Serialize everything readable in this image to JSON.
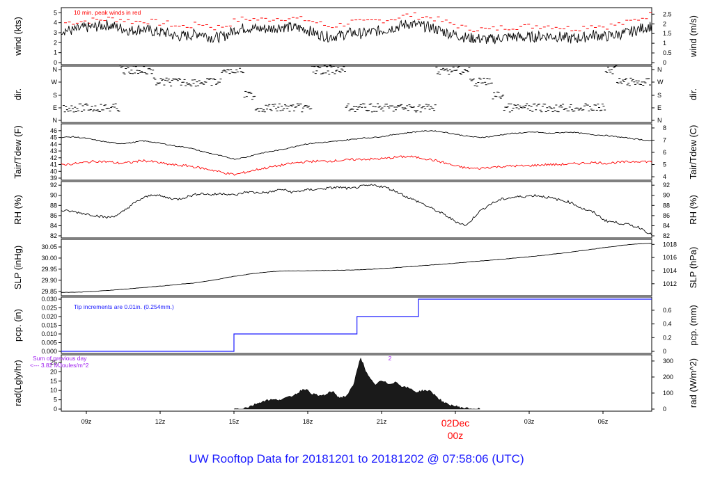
{
  "footer": {
    "title": "UW Rooftop Data for 20181201  to  20181202 @ 07:58:06  (UTC)"
  },
  "colors": {
    "series": "#000000",
    "peak": "#ff0000",
    "dew": "#ff0000",
    "precip": "#1a1aff",
    "footer": "#1a1aff",
    "annotation_purple": "#a020f0",
    "date_label": "#ff0000"
  },
  "chart_data": [
    {
      "type": "line",
      "panel": "wind",
      "ylabel": "wind (kts)",
      "ylabel_right": "wind (m/s)",
      "ylim": [
        0,
        5.3
      ],
      "yticks": [
        0,
        1,
        2,
        3,
        4,
        5
      ],
      "yticks_right": [
        "0",
        "0.5",
        "1",
        "1.5",
        "2",
        "2.5"
      ],
      "annotation": "10 min. peak winds in red",
      "series": [
        {
          "values": [
            3.3,
            3.2,
            3.5,
            3.6,
            3.8,
            3.5,
            3.2,
            3.4,
            3.1,
            3.0,
            2.6,
            2.7,
            3.0,
            2.5,
            2.6,
            3.3,
            3.5,
            3.4,
            3.4,
            3.6,
            3.5,
            3.4,
            2.9,
            2.6,
            2.7,
            3.0,
            2.9,
            3.1,
            3.3,
            3.6,
            3.9,
            3.7,
            3.5,
            3.1,
            2.8,
            2.5,
            2.4,
            2.3,
            2.5,
            2.6,
            2.5,
            2.6,
            2.7,
            2.6,
            2.4,
            2.5,
            2.8,
            2.6,
            2.8,
            3.0,
            3.4,
            3.7
          ]
        },
        {
          "name": "10 min. peak winds",
          "values": [
            4.0,
            4.1,
            4.2,
            4.3,
            4.4,
            4.3,
            4.1,
            4.2,
            4.0,
            3.9,
            3.6,
            3.7,
            3.9,
            3.5,
            3.7,
            4.3,
            4.4,
            4.3,
            4.4,
            4.5,
            4.4,
            4.3,
            4.0,
            3.6,
            3.8,
            4.1,
            4.0,
            4.2,
            4.3,
            4.5,
            4.8,
            4.6,
            4.5,
            4.1,
            3.8,
            3.4,
            3.4,
            3.3,
            3.5,
            3.6,
            3.6,
            3.7,
            3.7,
            3.6,
            3.4,
            3.5,
            3.8,
            3.6,
            3.8,
            4.0,
            4.4,
            4.8
          ]
        }
      ]
    },
    {
      "type": "scatter",
      "panel": "dir",
      "ylabel": "dir.",
      "ylabel_right": "dir.",
      "yticks": [
        "N",
        "W",
        "S",
        "E",
        "N"
      ],
      "values": [
        "E",
        "E",
        "E",
        "E",
        "E",
        "N",
        "N",
        "N",
        "W",
        "W",
        "W",
        "W",
        "W",
        "W",
        "N",
        "N",
        "S",
        "E",
        "E",
        "E",
        "E",
        "E",
        "N",
        "N",
        "N",
        "E",
        "E",
        "E",
        "E",
        "E",
        "E",
        "E",
        "E",
        "N",
        "N",
        "N",
        "W",
        "W",
        "S",
        "E",
        "E",
        "E",
        "E",
        "E",
        "E",
        "E",
        "E",
        "E",
        "N",
        "W",
        "W",
        "W"
      ]
    },
    {
      "type": "line",
      "panel": "temperature",
      "ylabel": "Tair/Tdew (F)",
      "ylabel_right": "Tair/Tdew (C)",
      "ylim": [
        39,
        46.7
      ],
      "yticks": [
        39,
        40,
        41,
        42,
        43,
        44,
        45,
        46
      ],
      "yticks_right": [
        "4",
        "5",
        "6",
        "7",
        "8"
      ],
      "series": [
        {
          "name": "Tair",
          "values": [
            45.0,
            45.1,
            44.9,
            44.6,
            44.3,
            44.1,
            44.2,
            44.5,
            44.3,
            44.0,
            43.7,
            43.5,
            43.0,
            42.6,
            42.2,
            41.8,
            42.1,
            42.6,
            42.9,
            43.2,
            43.6,
            44.0,
            44.2,
            44.3,
            44.5,
            44.7,
            44.9,
            45.0,
            45.2,
            45.5,
            45.7,
            45.9,
            46.0,
            45.8,
            45.5,
            45.2,
            45.0,
            45.1,
            45.4,
            45.6,
            45.7,
            45.8,
            45.6,
            45.7,
            45.8,
            45.6,
            45.4,
            45.3,
            45.1,
            44.9,
            44.7,
            44.5
          ]
        },
        {
          "name": "Tdew",
          "values": [
            41.0,
            41.1,
            41.3,
            41.5,
            41.4,
            41.2,
            41.3,
            41.6,
            41.4,
            41.1,
            40.9,
            40.8,
            40.5,
            40.2,
            39.8,
            39.5,
            39.9,
            40.3,
            40.6,
            40.9,
            41.2,
            41.4,
            41.5,
            41.5,
            41.6,
            41.7,
            41.8,
            41.8,
            41.9,
            42.1,
            42.2,
            42.0,
            41.7,
            41.3,
            40.8,
            40.5,
            40.4,
            40.6,
            40.7,
            40.8,
            40.8,
            40.9,
            41.0,
            41.0,
            41.1,
            41.2,
            41.3,
            41.2,
            41.3,
            41.4,
            41.5,
            41.4
          ]
        }
      ]
    },
    {
      "type": "line",
      "panel": "rh",
      "ylabel": "RH (%)",
      "ylabel_right": "RH (%)",
      "ylim": [
        82,
        92.3
      ],
      "yticks": [
        82,
        84,
        86,
        88,
        90,
        92
      ],
      "values": [
        87.0,
        86.8,
        86.4,
        86.0,
        85.6,
        86.2,
        88.0,
        89.4,
        90.2,
        89.6,
        89.2,
        89.8,
        90.4,
        90.1,
        90.4,
        90.0,
        90.7,
        90.5,
        90.6,
        91.2,
        90.6,
        91.0,
        91.2,
        91.4,
        91.6,
        91.3,
        91.8,
        92.0,
        91.6,
        90.7,
        89.5,
        88.6,
        87.4,
        86.3,
        84.9,
        84.0,
        86.6,
        88.2,
        89.2,
        89.6,
        89.8,
        90.0,
        89.6,
        89.1,
        88.6,
        87.4,
        86.6,
        85.0,
        84.6,
        84.2,
        83.6,
        82.2
      ]
    },
    {
      "type": "line",
      "panel": "slp",
      "ylabel": "SLP (inHg)",
      "ylabel_right": "SLP (hPa)",
      "ylim": [
        29.84,
        30.075
      ],
      "yticks": [
        29.85,
        29.9,
        29.95,
        30.0,
        30.05
      ],
      "yticks_right": [
        "1012",
        "1014",
        "1016",
        "1018"
      ],
      "values": [
        29.845,
        29.846,
        29.848,
        29.852,
        29.856,
        29.861,
        29.866,
        29.871,
        29.876,
        29.882,
        29.887,
        29.895,
        29.905,
        29.916,
        29.925,
        29.933,
        29.939,
        29.942,
        29.942,
        29.943,
        29.944,
        29.945,
        29.946,
        29.948,
        29.951,
        29.955,
        29.959,
        29.963,
        29.968,
        29.972,
        29.977,
        29.982,
        29.987,
        29.992,
        29.997,
        30.002,
        30.008,
        30.014,
        30.021,
        30.028,
        30.036,
        30.044,
        30.052,
        30.059,
        30.064,
        30.067
      ]
    },
    {
      "type": "line",
      "panel": "pcp",
      "ylabel": "pcp. (in)",
      "ylabel_right": "pcp. (mm)",
      "ylim": [
        0,
        0.03
      ],
      "yticks": [
        "0.000",
        "0.005",
        "0.010",
        "0.015",
        "0.020",
        "0.025",
        "0.030"
      ],
      "yticks_right": [
        "0",
        "0.2",
        "0.4",
        "0.6"
      ],
      "annotation": "Tip increments are 0.01in. (0.254mm.)",
      "steps": [
        {
          "x": "09z",
          "y": 0.0
        },
        {
          "x": "15z",
          "y": 0.01
        },
        {
          "x": "20z",
          "y": 0.02
        },
        {
          "x": "22.5z",
          "y": 0.03
        }
      ]
    },
    {
      "type": "area",
      "panel": "rad",
      "ylabel": "rad(Lgly/hr)",
      "ylabel_right": "rad (W/m^2)",
      "ylim": [
        0,
        28
      ],
      "yticks": [
        0,
        5,
        10,
        15,
        20,
        25
      ],
      "yticks_right": [
        "0",
        "100",
        "200",
        "300"
      ],
      "annotation_line1": "Sum of previous day",
      "annotation_line2": "<--- 3.82 MJoules/m^2",
      "marker_label": "2",
      "values": [
        0.0,
        0.2,
        1.0,
        2.5,
        4.0,
        5.0,
        4.8,
        5.5,
        6.5,
        8.5,
        11.0,
        8.5,
        7.0,
        7.5,
        9.5,
        6.0,
        7.0,
        12.5,
        28.0,
        18.0,
        13.0,
        15.0,
        13.5,
        14.5,
        12.0,
        11.0,
        9.0,
        10.0,
        9.5,
        6.0,
        3.0,
        2.0,
        1.0,
        0.4,
        0.1,
        0.0
      ]
    }
  ],
  "xaxis": {
    "ticks": [
      "09z",
      "12z",
      "15z",
      "18z",
      "21z",
      "00z",
      "03z",
      "06z"
    ],
    "date_label": "02Dec",
    "date_sublabel": "00z"
  }
}
